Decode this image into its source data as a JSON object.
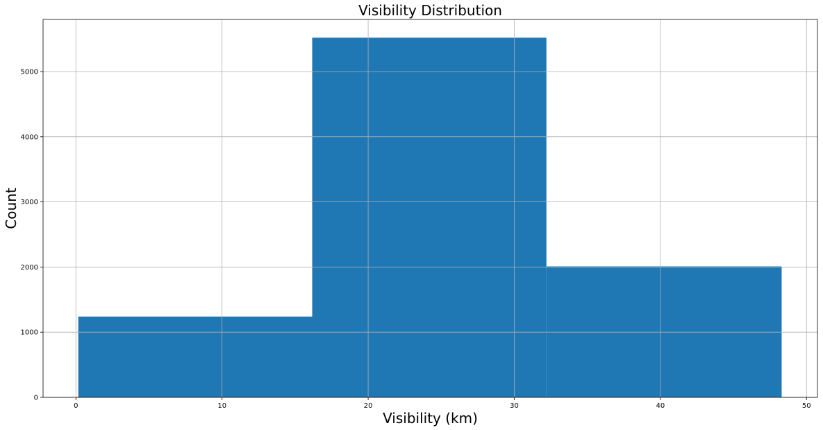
{
  "chart_data": {
    "type": "bar",
    "title": "Visibility Distribution",
    "xlabel": "Visibility (km)",
    "ylabel": "Count",
    "bins": [
      {
        "x0": 0.16,
        "x1": 16.17,
        "count": 1240
      },
      {
        "x0": 16.17,
        "x1": 32.2,
        "count": 5520
      },
      {
        "x0": 32.2,
        "x1": 48.3,
        "count": 2010
      }
    ],
    "xlim": [
      -2.25,
      50.75
    ],
    "ylim": [
      0,
      5800
    ],
    "xticks": [
      0,
      10,
      20,
      30,
      40,
      50
    ],
    "xtick_labels": [
      "0",
      "10",
      "20",
      "30",
      "40",
      "50"
    ],
    "yticks": [
      0,
      1000,
      2000,
      3000,
      4000,
      5000
    ],
    "ytick_labels": [
      "0",
      "1000",
      "2000",
      "3000",
      "4000",
      "5000"
    ],
    "grid": true,
    "bar_color": "#1f77b4",
    "grid_color": "#b0b0b0"
  }
}
